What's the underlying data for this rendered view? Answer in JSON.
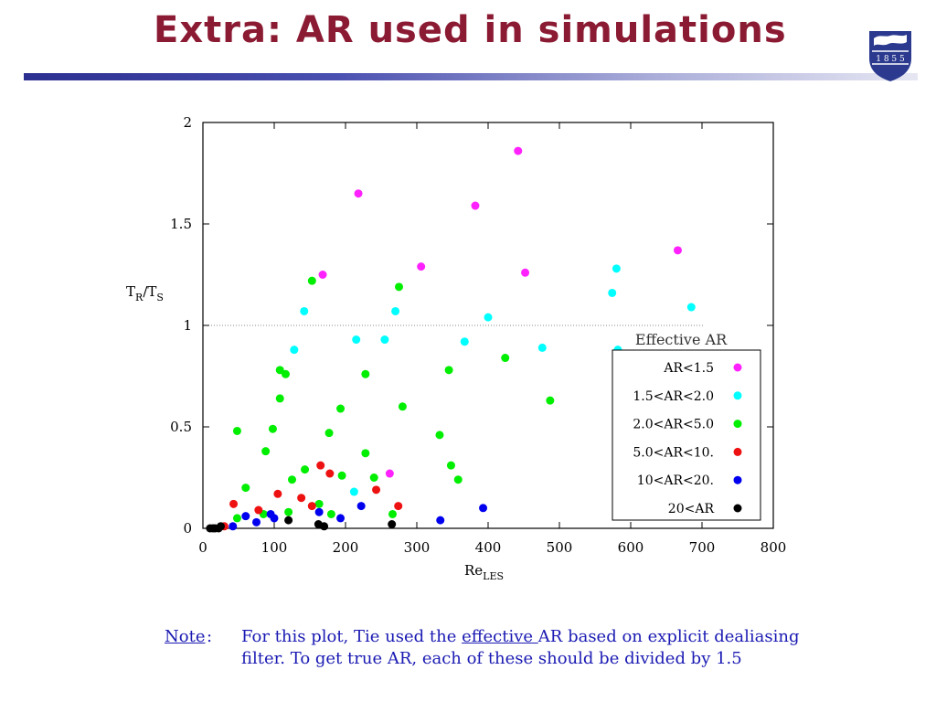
{
  "slide": {
    "title": "Extra: AR used in simulations",
    "logo_text": "1 8 5 5",
    "note_label": "Note",
    "note_colon": ":",
    "note_line1_pre": "For this plot, Tie used the ",
    "note_line1_link": "effective ",
    "note_line1_post": "AR based on explicit dealiasing",
    "note_line2": "filter. To get true AR, each of these should be divided by 1.5"
  },
  "colors": {
    "title": "#8b1a33",
    "note": "#1a1ab3"
  },
  "chart_data": {
    "type": "scatter",
    "xlabel": "Re",
    "xlabel_sub": "LES",
    "ylabel": "T",
    "ylabel_sub1": "R",
    "ylabel_mid": "/T",
    "ylabel_sub2": "S",
    "xlim": [
      0,
      800
    ],
    "ylim": [
      0,
      2
    ],
    "xticks": [
      0,
      100,
      200,
      300,
      400,
      500,
      600,
      700,
      800
    ],
    "yticks": [
      0,
      0.5,
      1,
      1.5,
      2
    ],
    "ytick_labels": [
      "0",
      "0.5",
      "1",
      "1.5",
      "2"
    ],
    "reference_line_y": 1,
    "grid": false,
    "legend_title": "Effective AR",
    "legend_position": "right",
    "series": [
      {
        "name": "AR<1.5",
        "color": "#ff22ff",
        "points": [
          [
            168,
            1.25
          ],
          [
            218,
            1.65
          ],
          [
            306,
            1.29
          ],
          [
            382,
            1.59
          ],
          [
            442,
            1.86
          ],
          [
            452,
            1.26
          ],
          [
            666,
            1.37
          ],
          [
            262,
            0.27
          ]
        ]
      },
      {
        "name": "1.5<AR<2.0",
        "color": "#00ffff",
        "points": [
          [
            142,
            1.07
          ],
          [
            128,
            0.88
          ],
          [
            215,
            0.93
          ],
          [
            255,
            0.93
          ],
          [
            270,
            1.07
          ],
          [
            367,
            0.92
          ],
          [
            400,
            1.04
          ],
          [
            476,
            0.89
          ],
          [
            574,
            1.16
          ],
          [
            580,
            1.28
          ],
          [
            582,
            0.88
          ],
          [
            685,
            1.09
          ],
          [
            212,
            0.18
          ]
        ]
      },
      {
        "name": "2.0<AR<5.0",
        "color": "#00ee00",
        "points": [
          [
            48,
            0.48
          ],
          [
            60,
            0.2
          ],
          [
            48,
            0.05
          ],
          [
            85,
            0.07
          ],
          [
            88,
            0.38
          ],
          [
            98,
            0.49
          ],
          [
            108,
            0.78
          ],
          [
            108,
            0.64
          ],
          [
            116,
            0.76
          ],
          [
            120,
            0.08
          ],
          [
            125,
            0.24
          ],
          [
            143,
            0.29
          ],
          [
            153,
            1.22
          ],
          [
            163,
            0.12
          ],
          [
            177,
            0.47
          ],
          [
            180,
            0.07
          ],
          [
            193,
            0.59
          ],
          [
            195,
            0.26
          ],
          [
            228,
            0.76
          ],
          [
            228,
            0.37
          ],
          [
            240,
            0.25
          ],
          [
            266,
            0.07
          ],
          [
            275,
            1.19
          ],
          [
            280,
            0.6
          ],
          [
            332,
            0.46
          ],
          [
            345,
            0.78
          ],
          [
            348,
            0.31
          ],
          [
            358,
            0.24
          ],
          [
            424,
            0.84
          ],
          [
            487,
            0.63
          ]
        ]
      },
      {
        "name": "5.0<AR<10.",
        "color": "#ee1111",
        "points": [
          [
            30,
            0.01
          ],
          [
            43,
            0.12
          ],
          [
            78,
            0.09
          ],
          [
            105,
            0.17
          ],
          [
            138,
            0.15
          ],
          [
            153,
            0.11
          ],
          [
            165,
            0.31
          ],
          [
            178,
            0.27
          ],
          [
            243,
            0.19
          ],
          [
            274,
            0.11
          ]
        ]
      },
      {
        "name": "10<AR<20.",
        "color": "#0000ee",
        "points": [
          [
            42,
            0.01
          ],
          [
            60,
            0.06
          ],
          [
            75,
            0.03
          ],
          [
            95,
            0.07
          ],
          [
            100,
            0.05
          ],
          [
            163,
            0.08
          ],
          [
            193,
            0.05
          ],
          [
            222,
            0.11
          ],
          [
            333,
            0.04
          ],
          [
            393,
            0.1
          ]
        ]
      },
      {
        "name": "20<AR",
        "color": "#000000",
        "points": [
          [
            10,
            0.0
          ],
          [
            14,
            0.0
          ],
          [
            17,
            0.0
          ],
          [
            22,
            0.0
          ],
          [
            25,
            0.01
          ],
          [
            120,
            0.04
          ],
          [
            162,
            0.02
          ],
          [
            170,
            0.01
          ],
          [
            265,
            0.02
          ]
        ]
      }
    ]
  }
}
